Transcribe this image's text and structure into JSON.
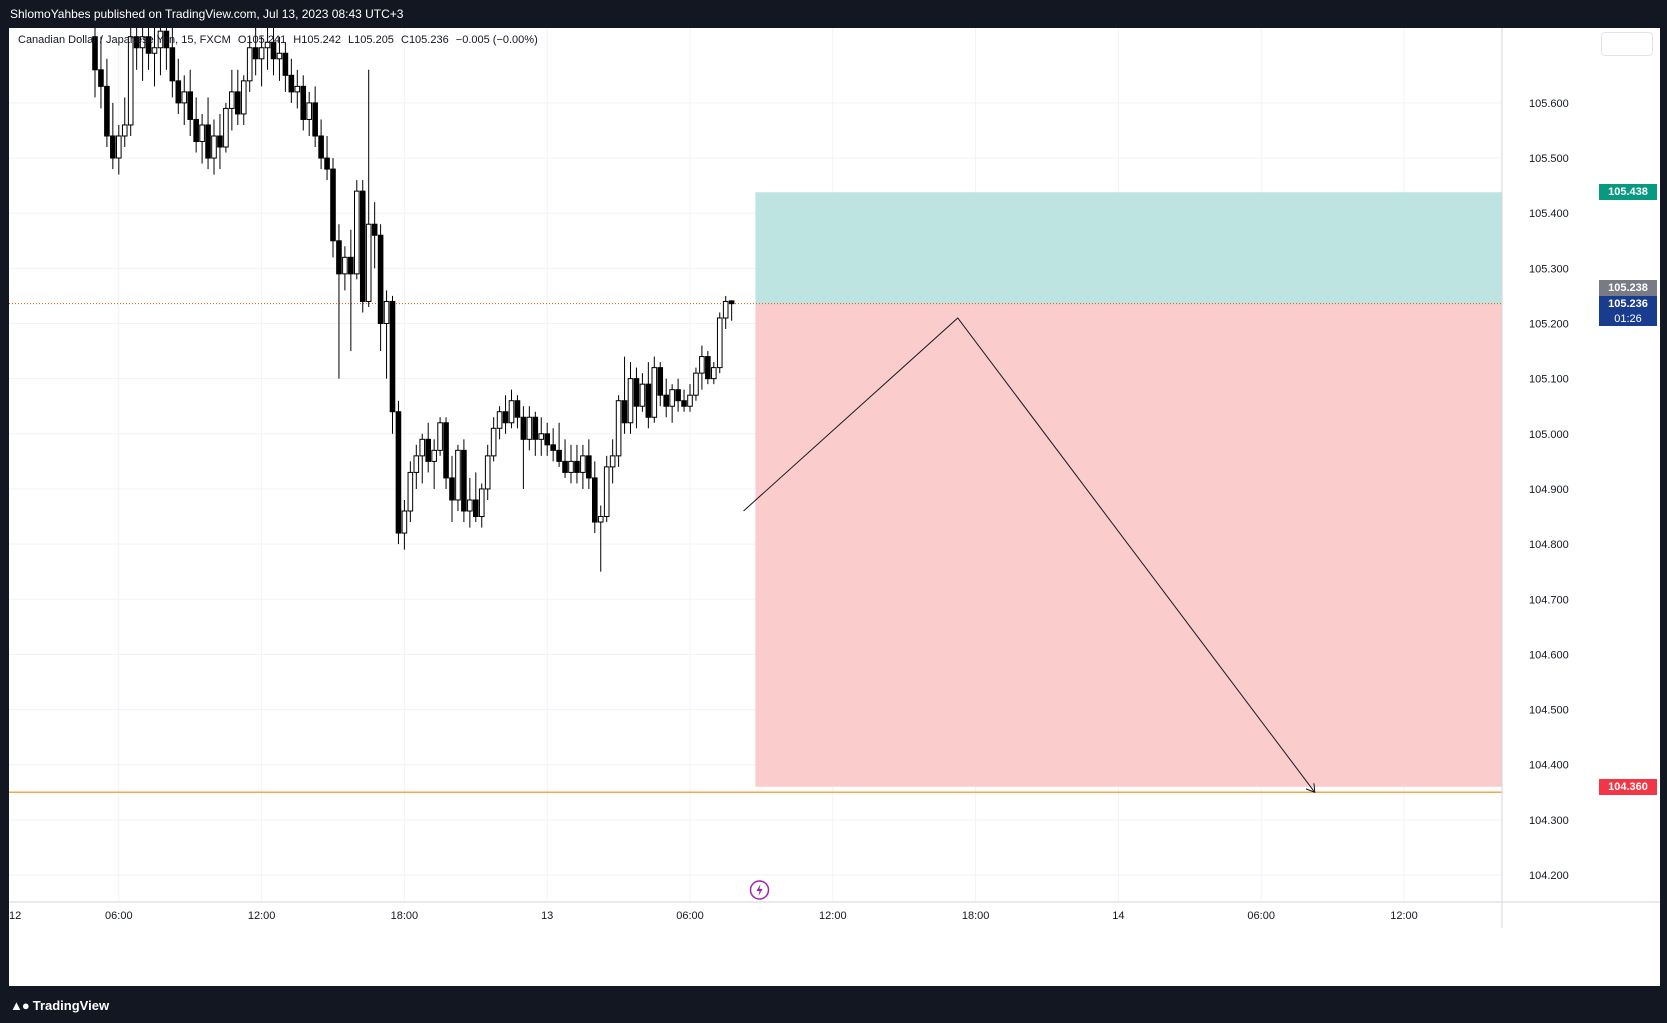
{
  "header": {
    "publish_text": "ShlomoYahbes published on TradingView.com, Jul 13, 2023 08:43 UTC+3"
  },
  "legend": {
    "symbol": "Canadian Dollar / Japanese Yen, 15, FXCM",
    "open": "O105.241",
    "high": "H105.242",
    "low": "L105.205",
    "close": "C105.236",
    "change": "−0.005 (−0.00%)"
  },
  "price_tags": {
    "target": "105.438",
    "prev_close": "105.238",
    "last": "105.236",
    "countdown": "01:26",
    "stop": "104.360"
  },
  "footer": {
    "brand": "TradingView",
    "logo_icon": "tradingview-logo-icon"
  },
  "colors": {
    "profit_zone": "#b2dfdb",
    "loss_zone": "#f9c6c6",
    "target_tag": "#089981",
    "last_tag": "#1a3c8f",
    "stop_tag": "#f23645",
    "prev_close_tag": "#787b86",
    "orange_line": "#f7a64b",
    "event_icon": "#9c27b0"
  },
  "chart_data": {
    "type": "candlestick",
    "ylim": [
      104.15,
      105.7
    ],
    "yticks": [
      104.2,
      104.3,
      104.4,
      104.5,
      104.6,
      104.7,
      104.8,
      104.9,
      105.0,
      105.1,
      105.2,
      105.3,
      105.4,
      105.5,
      105.6
    ],
    "ytick_labels": [
      "104.200",
      "104.300",
      "104.400",
      "104.500",
      "104.600",
      "104.700",
      "104.800",
      "104.900",
      "105.000",
      "105.100",
      "105.200",
      "105.300",
      "105.400",
      "105.500",
      "105.600"
    ],
    "xtick_labels": [
      "12",
      "06:00",
      "12:00",
      "18:00",
      "13",
      "06:00",
      "12:00",
      "18:00",
      "14",
      "06:00",
      "12:00"
    ],
    "xticks_bar": [
      -20,
      4,
      28,
      52,
      76,
      100,
      124,
      148,
      172,
      196,
      220
    ],
    "timeframe": "15",
    "candles": [
      {
        "o": 105.72,
        "h": 105.76,
        "l": 105.61,
        "c": 105.66
      },
      {
        "o": 105.66,
        "h": 105.72,
        "l": 105.59,
        "c": 105.63
      },
      {
        "o": 105.63,
        "h": 105.68,
        "l": 105.52,
        "c": 105.54
      },
      {
        "o": 105.54,
        "h": 105.6,
        "l": 105.48,
        "c": 105.5
      },
      {
        "o": 105.5,
        "h": 105.56,
        "l": 105.47,
        "c": 105.54
      },
      {
        "o": 105.54,
        "h": 105.61,
        "l": 105.52,
        "c": 105.56
      },
      {
        "o": 105.56,
        "h": 105.74,
        "l": 105.54,
        "c": 105.72
      },
      {
        "o": 105.72,
        "h": 105.76,
        "l": 105.66,
        "c": 105.7
      },
      {
        "o": 105.7,
        "h": 105.76,
        "l": 105.64,
        "c": 105.72
      },
      {
        "o": 105.72,
        "h": 105.76,
        "l": 105.66,
        "c": 105.69
      },
      {
        "o": 105.69,
        "h": 105.74,
        "l": 105.63,
        "c": 105.7
      },
      {
        "o": 105.7,
        "h": 105.76,
        "l": 105.65,
        "c": 105.73
      },
      {
        "o": 105.73,
        "h": 105.76,
        "l": 105.66,
        "c": 105.7
      },
      {
        "o": 105.7,
        "h": 105.74,
        "l": 105.61,
        "c": 105.64
      },
      {
        "o": 105.64,
        "h": 105.68,
        "l": 105.58,
        "c": 105.6
      },
      {
        "o": 105.6,
        "h": 105.65,
        "l": 105.56,
        "c": 105.62
      },
      {
        "o": 105.62,
        "h": 105.66,
        "l": 105.54,
        "c": 105.57
      },
      {
        "o": 105.57,
        "h": 105.61,
        "l": 105.51,
        "c": 105.53
      },
      {
        "o": 105.53,
        "h": 105.58,
        "l": 105.49,
        "c": 105.56
      },
      {
        "o": 105.56,
        "h": 105.61,
        "l": 105.48,
        "c": 105.5
      },
      {
        "o": 105.5,
        "h": 105.57,
        "l": 105.47,
        "c": 105.54
      },
      {
        "o": 105.54,
        "h": 105.58,
        "l": 105.48,
        "c": 105.52
      },
      {
        "o": 105.52,
        "h": 105.6,
        "l": 105.51,
        "c": 105.59
      },
      {
        "o": 105.59,
        "h": 105.66,
        "l": 105.55,
        "c": 105.62
      },
      {
        "o": 105.62,
        "h": 105.66,
        "l": 105.56,
        "c": 105.58
      },
      {
        "o": 105.58,
        "h": 105.65,
        "l": 105.56,
        "c": 105.64
      },
      {
        "o": 105.64,
        "h": 105.72,
        "l": 105.62,
        "c": 105.7
      },
      {
        "o": 105.7,
        "h": 105.74,
        "l": 105.65,
        "c": 105.68
      },
      {
        "o": 105.68,
        "h": 105.72,
        "l": 105.63,
        "c": 105.7
      },
      {
        "o": 105.7,
        "h": 105.74,
        "l": 105.66,
        "c": 105.71
      },
      {
        "o": 105.71,
        "h": 105.74,
        "l": 105.65,
        "c": 105.68
      },
      {
        "o": 105.68,
        "h": 105.72,
        "l": 105.64,
        "c": 105.69
      },
      {
        "o": 105.69,
        "h": 105.71,
        "l": 105.62,
        "c": 105.65
      },
      {
        "o": 105.65,
        "h": 105.68,
        "l": 105.6,
        "c": 105.62
      },
      {
        "o": 105.62,
        "h": 105.66,
        "l": 105.59,
        "c": 105.63
      },
      {
        "o": 105.63,
        "h": 105.65,
        "l": 105.55,
        "c": 105.57
      },
      {
        "o": 105.57,
        "h": 105.62,
        "l": 105.54,
        "c": 105.6
      },
      {
        "o": 105.6,
        "h": 105.63,
        "l": 105.52,
        "c": 105.54
      },
      {
        "o": 105.54,
        "h": 105.57,
        "l": 105.48,
        "c": 105.5
      },
      {
        "o": 105.5,
        "h": 105.54,
        "l": 105.46,
        "c": 105.48
      },
      {
        "o": 105.48,
        "h": 105.5,
        "l": 105.32,
        "c": 105.35
      },
      {
        "o": 105.35,
        "h": 105.38,
        "l": 105.1,
        "c": 105.29
      },
      {
        "o": 105.29,
        "h": 105.34,
        "l": 105.26,
        "c": 105.32
      },
      {
        "o": 105.32,
        "h": 105.37,
        "l": 105.15,
        "c": 105.29
      },
      {
        "o": 105.29,
        "h": 105.46,
        "l": 105.28,
        "c": 105.44
      },
      {
        "o": 105.44,
        "h": 105.46,
        "l": 105.22,
        "c": 105.24
      },
      {
        "o": 105.24,
        "h": 105.66,
        "l": 105.23,
        "c": 105.38
      },
      {
        "o": 105.38,
        "h": 105.42,
        "l": 105.3,
        "c": 105.36
      },
      {
        "o": 105.36,
        "h": 105.38,
        "l": 105.15,
        "c": 105.2
      },
      {
        "o": 105.2,
        "h": 105.26,
        "l": 105.1,
        "c": 105.24
      },
      {
        "o": 105.24,
        "h": 105.25,
        "l": 105.0,
        "c": 105.04
      },
      {
        "o": 105.04,
        "h": 105.06,
        "l": 104.8,
        "c": 104.82
      },
      {
        "o": 104.82,
        "h": 104.88,
        "l": 104.79,
        "c": 104.86
      },
      {
        "o": 104.86,
        "h": 104.95,
        "l": 104.84,
        "c": 104.93
      },
      {
        "o": 104.93,
        "h": 104.98,
        "l": 104.9,
        "c": 104.96
      },
      {
        "o": 104.96,
        "h": 105.0,
        "l": 104.91,
        "c": 104.99
      },
      {
        "o": 104.99,
        "h": 105.02,
        "l": 104.93,
        "c": 104.95
      },
      {
        "o": 104.95,
        "h": 104.99,
        "l": 104.9,
        "c": 104.97
      },
      {
        "o": 104.97,
        "h": 105.03,
        "l": 104.96,
        "c": 105.02
      },
      {
        "o": 105.02,
        "h": 105.03,
        "l": 104.9,
        "c": 104.92
      },
      {
        "o": 104.92,
        "h": 104.96,
        "l": 104.84,
        "c": 104.88
      },
      {
        "o": 104.88,
        "h": 104.98,
        "l": 104.86,
        "c": 104.97
      },
      {
        "o": 104.97,
        "h": 104.99,
        "l": 104.84,
        "c": 104.86
      },
      {
        "o": 104.86,
        "h": 104.92,
        "l": 104.83,
        "c": 104.88
      },
      {
        "o": 104.88,
        "h": 104.93,
        "l": 104.84,
        "c": 104.85
      },
      {
        "o": 104.85,
        "h": 104.91,
        "l": 104.83,
        "c": 104.9
      },
      {
        "o": 104.9,
        "h": 104.98,
        "l": 104.88,
        "c": 104.96
      },
      {
        "o": 104.96,
        "h": 105.03,
        "l": 104.95,
        "c": 105.01
      },
      {
        "o": 105.01,
        "h": 105.05,
        "l": 104.99,
        "c": 105.04
      },
      {
        "o": 105.04,
        "h": 105.07,
        "l": 105.0,
        "c": 105.02
      },
      {
        "o": 105.02,
        "h": 105.08,
        "l": 105.01,
        "c": 105.06
      },
      {
        "o": 105.06,
        "h": 105.07,
        "l": 105.01,
        "c": 105.03
      },
      {
        "o": 105.03,
        "h": 105.05,
        "l": 104.9,
        "c": 104.99
      },
      {
        "o": 104.99,
        "h": 105.05,
        "l": 104.97,
        "c": 105.03
      },
      {
        "o": 105.03,
        "h": 105.04,
        "l": 104.96,
        "c": 104.99
      },
      {
        "o": 104.99,
        "h": 105.03,
        "l": 104.96,
        "c": 105.0
      },
      {
        "o": 105.0,
        "h": 105.02,
        "l": 104.96,
        "c": 104.98
      },
      {
        "o": 104.98,
        "h": 105.01,
        "l": 104.95,
        "c": 104.97
      },
      {
        "o": 104.97,
        "h": 105.02,
        "l": 104.94,
        "c": 104.95
      },
      {
        "o": 104.95,
        "h": 104.99,
        "l": 104.92,
        "c": 104.93
      },
      {
        "o": 104.93,
        "h": 104.98,
        "l": 104.91,
        "c": 104.95
      },
      {
        "o": 104.95,
        "h": 104.98,
        "l": 104.91,
        "c": 104.93
      },
      {
        "o": 104.93,
        "h": 104.98,
        "l": 104.9,
        "c": 104.96
      },
      {
        "o": 104.96,
        "h": 104.99,
        "l": 104.9,
        "c": 104.92
      },
      {
        "o": 104.92,
        "h": 104.95,
        "l": 104.82,
        "c": 104.84
      },
      {
        "o": 104.84,
        "h": 104.87,
        "l": 104.75,
        "c": 104.85
      },
      {
        "o": 104.85,
        "h": 104.96,
        "l": 104.84,
        "c": 104.94
      },
      {
        "o": 104.94,
        "h": 104.99,
        "l": 104.91,
        "c": 104.96
      },
      {
        "o": 104.96,
        "h": 105.07,
        "l": 104.94,
        "c": 105.06
      },
      {
        "o": 105.06,
        "h": 105.14,
        "l": 105.0,
        "c": 105.02
      },
      {
        "o": 105.02,
        "h": 105.13,
        "l": 105.0,
        "c": 105.1
      },
      {
        "o": 105.1,
        "h": 105.12,
        "l": 105.01,
        "c": 105.05
      },
      {
        "o": 105.05,
        "h": 105.11,
        "l": 105.04,
        "c": 105.09
      },
      {
        "o": 105.09,
        "h": 105.13,
        "l": 105.01,
        "c": 105.03
      },
      {
        "o": 105.03,
        "h": 105.14,
        "l": 105.02,
        "c": 105.12
      },
      {
        "o": 105.12,
        "h": 105.13,
        "l": 105.05,
        "c": 105.07
      },
      {
        "o": 105.07,
        "h": 105.1,
        "l": 105.03,
        "c": 105.05
      },
      {
        "o": 105.05,
        "h": 105.09,
        "l": 105.02,
        "c": 105.08
      },
      {
        "o": 105.08,
        "h": 105.1,
        "l": 105.04,
        "c": 105.06
      },
      {
        "o": 105.06,
        "h": 105.08,
        "l": 105.04,
        "c": 105.05
      },
      {
        "o": 105.05,
        "h": 105.09,
        "l": 105.04,
        "c": 105.07
      },
      {
        "o": 105.07,
        "h": 105.12,
        "l": 105.06,
        "c": 105.11
      },
      {
        "o": 105.11,
        "h": 105.16,
        "l": 105.08,
        "c": 105.14
      },
      {
        "o": 105.14,
        "h": 105.15,
        "l": 105.09,
        "c": 105.1
      },
      {
        "o": 105.1,
        "h": 105.13,
        "l": 105.09,
        "c": 105.12
      },
      {
        "o": 105.12,
        "h": 105.22,
        "l": 105.11,
        "c": 105.21
      },
      {
        "o": 105.21,
        "h": 105.25,
        "l": 105.19,
        "c": 105.24
      },
      {
        "o": 105.241,
        "h": 105.242,
        "l": 105.205,
        "c": 105.236
      }
    ],
    "position": {
      "side": "short",
      "entry": 105.236,
      "target": 105.438,
      "stop": 104.36,
      "start_bar": 111,
      "end_bar": 232
    },
    "horizontal_line": 104.35,
    "drawn_path": [
      {
        "bar": 109,
        "price": 104.86
      },
      {
        "bar": 145,
        "price": 105.21
      },
      {
        "bar": 205,
        "price": 104.35
      }
    ],
    "event_marker_bar": 110
  }
}
